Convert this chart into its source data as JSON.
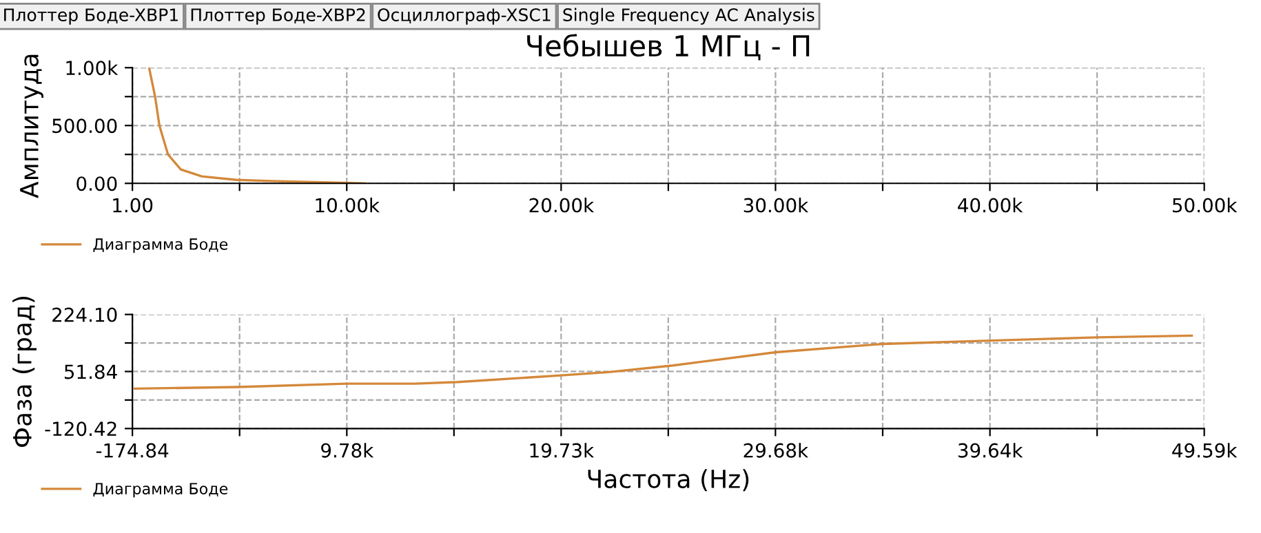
{
  "chart_data": [
    {
      "type": "line",
      "title": "Чебышев 1 МГц - П",
      "ylabel": "Амплитуда",
      "annotations": [
        "Плоттер Боде-XBP1",
        "Плоттер Боде-XBP2",
        "Осциллограф-XSC1",
        "Single Frequency AC Analysis"
      ],
      "xlim": [
        1,
        50000
      ],
      "xticks": [
        {
          "value": 1,
          "label": "1.00"
        },
        {
          "value": 5000,
          "label": null
        },
        {
          "value": 10000,
          "label": "10.00k"
        },
        {
          "value": 15000,
          "label": null
        },
        {
          "value": 20000,
          "label": "20.00k"
        },
        {
          "value": 25000,
          "label": null
        },
        {
          "value": 30000,
          "label": "30.00k"
        },
        {
          "value": 35000,
          "label": null
        },
        {
          "value": 40000,
          "label": "40.00k"
        },
        {
          "value": 45000,
          "label": null
        },
        {
          "value": 50000,
          "label": "50.00k"
        }
      ],
      "ylim": [
        0,
        1000
      ],
      "yticks": [
        {
          "value": 0,
          "label": "0.00"
        },
        {
          "value": 250,
          "label": null
        },
        {
          "value": 500,
          "label": "500.00"
        },
        {
          "value": 750,
          "label": null
        },
        {
          "value": 1000,
          "label": "1.00k"
        }
      ],
      "grid": true,
      "legend": "bottom left",
      "series": [
        {
          "name": "Диаграмма Боде",
          "color": "#d4883a",
          "x": [
            780,
            1060,
            1260,
            1660,
            2260,
            3240,
            4860,
            6470,
            10850
          ],
          "values": [
            1000,
            750,
            500,
            250,
            120,
            60,
            30,
            20,
            0
          ]
        }
      ]
    },
    {
      "type": "line",
      "ylabel": "Фаза (град)",
      "xlabel": "Частота (Hz)",
      "xlim": [
        -174.84,
        49590
      ],
      "xticks": [
        {
          "value": -174.84,
          "label": "-174.84"
        },
        {
          "value": 4802,
          "label": null
        },
        {
          "value": 9780,
          "label": "9.78k"
        },
        {
          "value": 14755,
          "label": null
        },
        {
          "value": 19730,
          "label": "19.73k"
        },
        {
          "value": 24705,
          "label": null
        },
        {
          "value": 29680,
          "label": "29.68k"
        },
        {
          "value": 34660,
          "label": null
        },
        {
          "value": 39640,
          "label": "39.64k"
        },
        {
          "value": 44615,
          "label": null
        },
        {
          "value": 49590,
          "label": "49.59k"
        }
      ],
      "ylim": [
        -120.42,
        224.1
      ],
      "yticks": [
        {
          "value": -120.42,
          "label": "-120.42"
        },
        {
          "value": -34.29,
          "label": null
        },
        {
          "value": 51.84,
          "label": "51.84"
        },
        {
          "value": 137.97,
          "label": null
        },
        {
          "value": 224.1,
          "label": "224.10"
        }
      ],
      "grid": true,
      "legend": "bottom left",
      "series": [
        {
          "name": "Диаграмма Боде",
          "color": "#d4883a",
          "x": [
            -73,
            4724,
            9784,
            12968,
            14940,
            19719,
            21930,
            24917,
            29695,
            34654,
            39654,
            44631,
            49010
          ],
          "values": [
            0,
            5,
            15,
            15,
            20,
            40,
            50,
            70,
            110,
            135,
            145,
            155,
            160
          ]
        }
      ]
    }
  ]
}
